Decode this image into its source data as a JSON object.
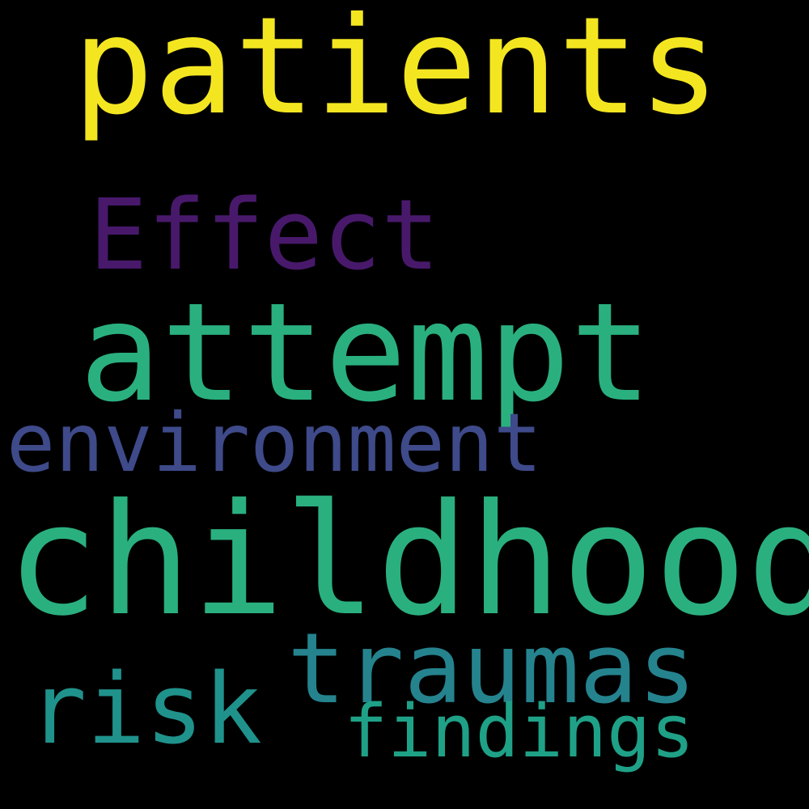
{
  "background": "#000000",
  "words": [
    {
      "id": "patients",
      "text": "patients",
      "color": "#f3e621"
    },
    {
      "id": "effect",
      "text": "Effect",
      "color": "#48196b"
    },
    {
      "id": "attempt",
      "text": "attempt",
      "color": "#2ab07f"
    },
    {
      "id": "environment",
      "text": "environment",
      "color": "#3e4a89"
    },
    {
      "id": "childhood",
      "text": "childhood",
      "color": "#2ab07f"
    },
    {
      "id": "traumas",
      "text": "traumas",
      "color": "#25838e"
    },
    {
      "id": "risk",
      "text": "risk",
      "color": "#20928c"
    },
    {
      "id": "findings",
      "text": "findings",
      "color": "#1fa187"
    }
  ]
}
